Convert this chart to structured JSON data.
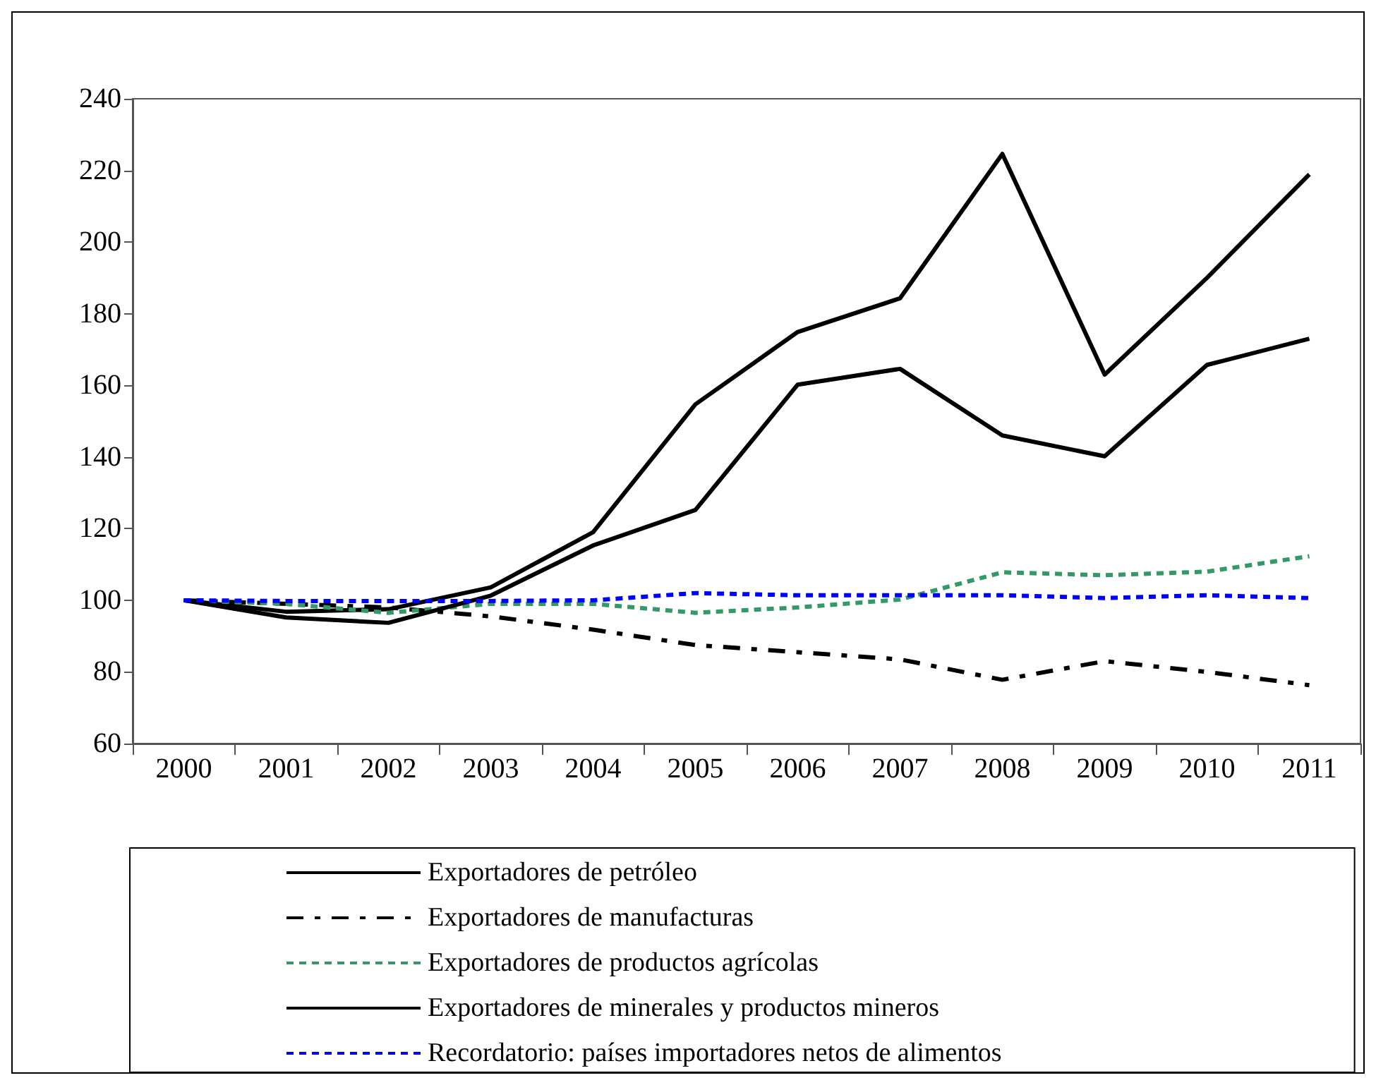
{
  "chart_data": {
    "type": "line",
    "categories": [
      "2000",
      "2001",
      "2002",
      "2003",
      "2004",
      "2005",
      "2006",
      "2007",
      "2008",
      "2009",
      "2010",
      "2011"
    ],
    "series": [
      {
        "name": "Exportadores de petróleo",
        "color": "#000000",
        "line_style": "solid",
        "values": [
          100,
          96.8,
          97.5,
          103.6,
          119,
          154.7,
          174.9,
          184.3,
          224.6,
          163,
          190,
          218.9
        ]
      },
      {
        "name": "Exportadores de manufacturas",
        "color": "#000000",
        "line_style": "dashed",
        "values": [
          100,
          99,
          98,
          95.5,
          91.8,
          87.5,
          85.5,
          83.5,
          77.8,
          83,
          80,
          76.3
        ]
      },
      {
        "name": "Exportadores de productos agrícolas",
        "color": "#339966",
        "line_style": "dotted",
        "values": [
          100,
          99,
          96.5,
          99,
          99,
          96.5,
          98,
          100.2,
          107.8,
          107,
          108,
          112.3
        ]
      },
      {
        "name": "Exportadores de minerales y productos mineros",
        "color": "#000000",
        "line_style": "solid",
        "values": [
          100,
          95.2,
          93.7,
          101.3,
          115.3,
          125.2,
          160.2,
          164.6,
          146,
          140.2,
          165.7,
          173
        ]
      },
      {
        "name": "Recordatorio: países importadores netos de alimentos",
        "color": "#0000ff",
        "line_style": "dotted",
        "values": [
          100,
          99.8,
          99.8,
          99.8,
          100,
          102,
          101.4,
          101.4,
          101.4,
          100.6,
          101.4,
          100.6
        ]
      }
    ],
    "ylim": [
      60,
      240
    ],
    "yticks": [
      60,
      80,
      100,
      120,
      140,
      160,
      180,
      200,
      220,
      240
    ],
    "grid": false,
    "legend": "bottom",
    "marker": "none"
  }
}
